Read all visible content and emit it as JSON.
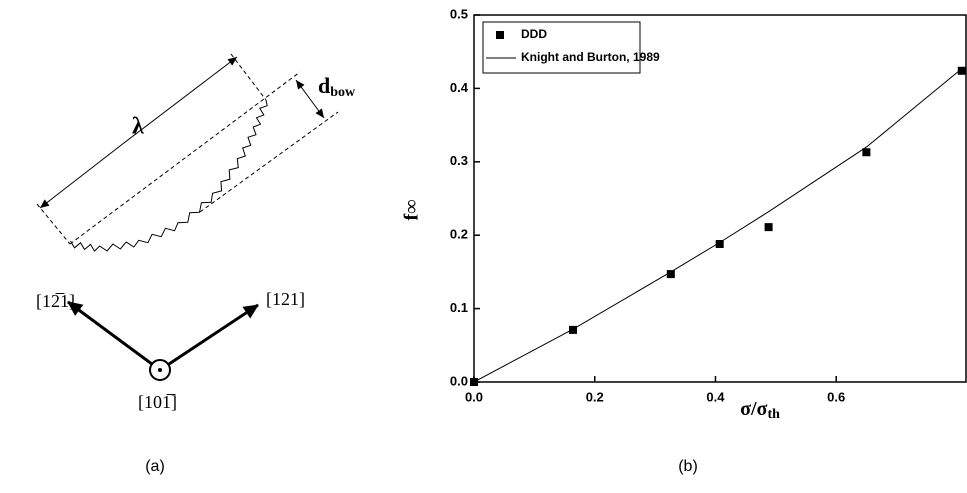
{
  "panel_a": {
    "lambda": "λ",
    "d_main": "d",
    "d_sub": "bow",
    "dir_left": "[12̅1]",
    "dir_right": "[121]",
    "dir_bottom": "[101̅]",
    "caption": "(a)"
  },
  "caption_b": "(b)",
  "chart_data": {
    "type": "scatter",
    "xlabel": {
      "main": "σ/σ",
      "sub": "th"
    },
    "ylabel": "f∞",
    "xlim": [
      0,
      0.815
    ],
    "ylim": [
      0,
      0.5
    ],
    "xticks": [
      {
        "value": 0,
        "label": "0.0"
      },
      0.2,
      0.4,
      0.6
    ],
    "yticks": [
      {
        "value": 0,
        "label": "0.0"
      },
      0.1,
      0.2,
      0.3,
      0.4,
      0.5
    ],
    "legend": "upper left",
    "series": [
      {
        "name": "DDD",
        "color": "#000000",
        "style": "marker",
        "x": [
          0,
          0.164,
          0.326,
          0.407,
          0.488,
          0.65,
          0.808
        ],
        "values": [
          0,
          0.071,
          0.147,
          0.188,
          0.211,
          0.313,
          0.424
        ]
      },
      {
        "name": "Knight and Burton, 1989",
        "color": "#000000",
        "style": "line",
        "x": [
          0,
          0.164,
          0.326,
          0.407,
          0.488,
          0.65,
          0.808
        ],
        "values": [
          0,
          0.072,
          0.15,
          0.19,
          0.232,
          0.32,
          0.427
        ]
      }
    ]
  }
}
